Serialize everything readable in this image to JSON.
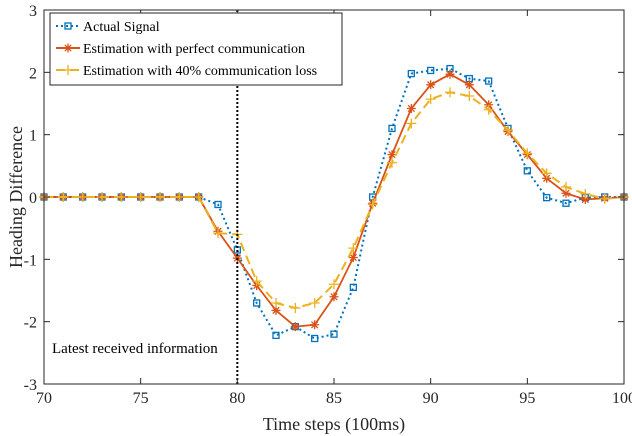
{
  "chart_data": {
    "type": "line",
    "xlabel": "Time steps (100ms)",
    "ylabel": "Heading Difference",
    "xlim": [
      70,
      100
    ],
    "ylim": [
      -3,
      3
    ],
    "xticks": [
      "70",
      "75",
      "80",
      "85",
      "90",
      "95",
      "100"
    ],
    "yticks": [
      "3",
      "2",
      "1",
      "0",
      "-1",
      "-2",
      "-3"
    ],
    "grid": false,
    "legend_position": "top-left",
    "x": [
      70,
      71,
      72,
      73,
      74,
      75,
      76,
      77,
      78,
      79,
      80,
      81,
      82,
      83,
      84,
      85,
      86,
      87,
      88,
      89,
      90,
      91,
      92,
      93,
      94,
      95,
      96,
      97,
      98,
      99,
      100
    ],
    "series": [
      {
        "name": "Actual Signal",
        "color": "#0072BD",
        "style": "dotted",
        "marker": "square",
        "values": [
          0,
          0,
          0,
          0,
          0,
          0,
          0,
          0,
          0,
          -0.12,
          -0.85,
          -1.7,
          -2.22,
          -2.08,
          -2.27,
          -2.2,
          -1.45,
          0,
          1.1,
          1.98,
          2.03,
          2.06,
          1.9,
          1.86,
          1.1,
          0.42,
          -0.01,
          -0.1,
          -0.01,
          0,
          0
        ]
      },
      {
        "name": "Estimation with perfect communication",
        "color": "#D95319",
        "style": "solid",
        "marker": "asterisk",
        "values": [
          0,
          0,
          0,
          0,
          0,
          0,
          0,
          0,
          0,
          -0.55,
          -0.98,
          -1.42,
          -1.82,
          -2.08,
          -2.05,
          -1.6,
          -0.97,
          -0.1,
          0.68,
          1.42,
          1.8,
          1.97,
          1.8,
          1.48,
          1.05,
          0.68,
          0.3,
          0.06,
          -0.04,
          -0.02,
          0
        ]
      },
      {
        "name": "Estimation with 40% communication loss",
        "color": "#EDB120",
        "style": "dashed",
        "marker": "plus",
        "values": [
          0,
          0,
          0,
          0,
          0,
          0,
          0,
          0,
          0,
          -0.58,
          -0.6,
          -1.35,
          -1.7,
          -1.78,
          -1.7,
          -1.4,
          -0.82,
          -0.12,
          0.55,
          1.18,
          1.57,
          1.68,
          1.62,
          1.4,
          1.07,
          0.7,
          0.38,
          0.16,
          0.05,
          -0.03,
          0
        ]
      }
    ],
    "annotations": [
      {
        "text": "Latest received information",
        "vline_x": 80
      }
    ]
  }
}
